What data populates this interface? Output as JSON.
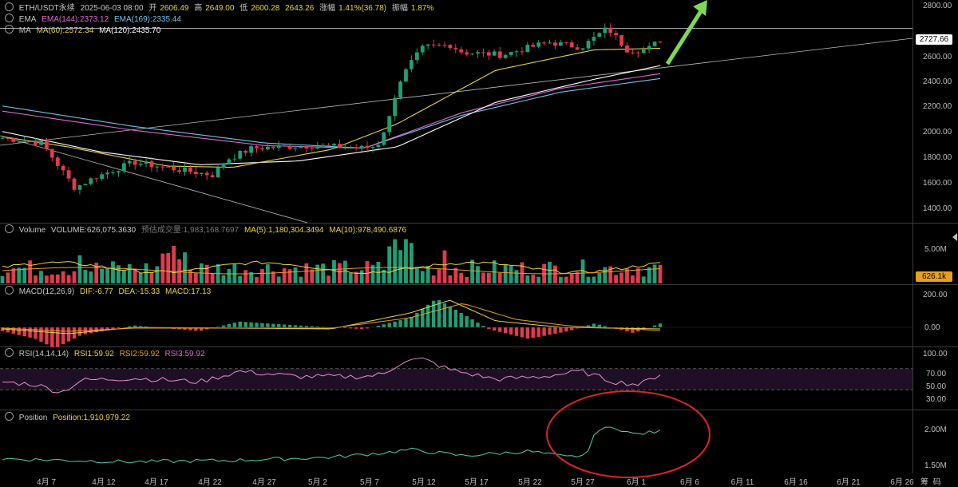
{
  "price_header": {
    "symbol": "ETH/USDT永续",
    "date": "2025-06-03 08:00",
    "open_label": "开",
    "open": "2606.49",
    "high_label": "高",
    "high": "2649.00",
    "low_label": "低",
    "low": "2600.28",
    "close": "2643.26",
    "change_label": "涨幅",
    "change": "1.41%(36.78)",
    "amp_label": "振幅",
    "amp": "1.87%"
  },
  "ema_header": {
    "name": "EMA",
    "ema144": "EMA(144):2373.12",
    "ema169": "EMA(169):2335.44"
  },
  "ma_header": {
    "name": "MA",
    "ma60": "MA(60):2572.34",
    "ma120": "MA(120):2435.70"
  },
  "volume_header": {
    "name": "Volume",
    "volume": "VOLUME:626,075.3630",
    "predicted": "预估成交量:1,983,168.7697",
    "ma5": "MA(5):1,180,304.3494",
    "ma10": "MA(10):978,490.6876"
  },
  "macd_header": {
    "name": "MACD(12,26,9)",
    "dif": "DIF:-6.77",
    "dea": "DEA:-15.33",
    "macd": "MACD:17.13"
  },
  "rsi_header": {
    "name": "RSI(14,14,14)",
    "rsi1": "RSI1:59.92",
    "rsi2": "RSI2:59.92",
    "rsi3": "RSI3:59.92"
  },
  "position_header": {
    "name": "Position",
    "position": "Position:1,910,979.22"
  },
  "price_axis": [
    "2800.00",
    "2600.00",
    "2400.00",
    "2200.00",
    "2000.00",
    "1800.00",
    "1600.00",
    "1400.00"
  ],
  "price_badge": "2727.66",
  "volume_axis": [
    "5.00M"
  ],
  "volume_badge": "626.1k",
  "macd_axis": [
    "200.00",
    "0.00"
  ],
  "rsi_axis": [
    "100.00",
    "70.00",
    "50.00",
    "30.00"
  ],
  "position_axis": [
    "2.00M",
    "1.50M"
  ],
  "date_axis": [
    "4月 7",
    "4月 12",
    "4月 17",
    "4月 22",
    "4月 27",
    "5月 2",
    "5月 7",
    "5月 12",
    "5月 17",
    "5月 22",
    "5月 27",
    "6月 1",
    "6月 6",
    "6月 11",
    "6月 16",
    "6月 21",
    "6月 26"
  ],
  "corner_labels": {
    "left": "筹",
    "right": "码"
  },
  "colors": {
    "up": "#1f9e77",
    "down": "#e23a4e",
    "ema144": "#e06ad0",
    "ema169": "#6fc3e8",
    "ma60": "#e8d44a",
    "ma120": "#ffffff",
    "arrow": "#7ed957",
    "circle": "#d9262c",
    "position": "#4fd1b0",
    "rsi": "#e78fc4"
  },
  "chart_data": {
    "type": "candlestick",
    "title": "ETH/USDT永续",
    "ylim": [
      1300,
      2900
    ],
    "key_level": 2727.66,
    "last": {
      "open": 2606.49,
      "high": 2649.0,
      "low": 2600.28,
      "close": 2643.26
    }
  }
}
